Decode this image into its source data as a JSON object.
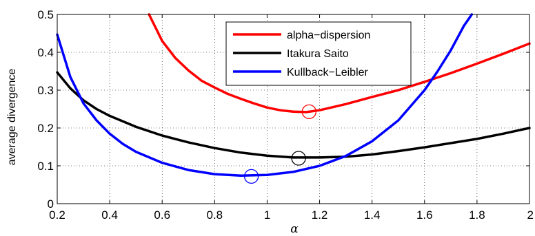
{
  "chart_data": {
    "type": "line",
    "xlabel": "α",
    "ylabel": "average divergence",
    "xlim": [
      0.2,
      2.0
    ],
    "ylim": [
      0,
      0.5
    ],
    "xticks": [
      0.2,
      0.4,
      0.6,
      0.8,
      1,
      1.2,
      1.4,
      1.6,
      1.8,
      2
    ],
    "yticks": [
      0,
      0.1,
      0.2,
      0.3,
      0.4,
      0.5
    ],
    "grid": "dotted",
    "legend_position": "top-right",
    "series": [
      {
        "name": "alpha−dispersion",
        "color": "#ff0000",
        "x": [
          0.55,
          0.6,
          0.65,
          0.7,
          0.75,
          0.8,
          0.85,
          0.9,
          0.95,
          1.0,
          1.05,
          1.1,
          1.15,
          1.2,
          1.3,
          1.4,
          1.5,
          1.6,
          1.7,
          1.8,
          1.9,
          2.0
        ],
        "y": [
          0.5,
          0.43,
          0.385,
          0.352,
          0.325,
          0.307,
          0.29,
          0.277,
          0.265,
          0.254,
          0.247,
          0.243,
          0.242,
          0.247,
          0.263,
          0.282,
          0.3,
          0.322,
          0.345,
          0.37,
          0.396,
          0.423
        ],
        "marker": {
          "x": 1.16,
          "y": 0.243
        }
      },
      {
        "name": "Itakura Saito",
        "color": "#000000",
        "x": [
          0.2,
          0.25,
          0.3,
          0.35,
          0.4,
          0.5,
          0.6,
          0.7,
          0.8,
          0.9,
          1.0,
          1.1,
          1.2,
          1.3,
          1.4,
          1.5,
          1.6,
          1.7,
          1.8,
          1.9,
          2.0
        ],
        "y": [
          0.347,
          0.305,
          0.273,
          0.25,
          0.232,
          0.203,
          0.18,
          0.162,
          0.147,
          0.135,
          0.127,
          0.122,
          0.122,
          0.124,
          0.13,
          0.139,
          0.149,
          0.16,
          0.171,
          0.185,
          0.2
        ],
        "marker": {
          "x": 1.12,
          "y": 0.12
        }
      },
      {
        "name": "Kullback−Leibler",
        "color": "#0000ff",
        "x": [
          0.2,
          0.25,
          0.3,
          0.35,
          0.4,
          0.45,
          0.5,
          0.6,
          0.7,
          0.8,
          0.9,
          1.0,
          1.1,
          1.2,
          1.3,
          1.4,
          1.5,
          1.6,
          1.65,
          1.7,
          1.75,
          1.78
        ],
        "y": [
          0.447,
          0.335,
          0.265,
          0.22,
          0.185,
          0.158,
          0.137,
          0.108,
          0.089,
          0.078,
          0.074,
          0.076,
          0.084,
          0.1,
          0.126,
          0.165,
          0.22,
          0.3,
          0.35,
          0.405,
          0.47,
          0.5
        ],
        "marker": {
          "x": 0.94,
          "y": 0.072
        }
      }
    ]
  }
}
